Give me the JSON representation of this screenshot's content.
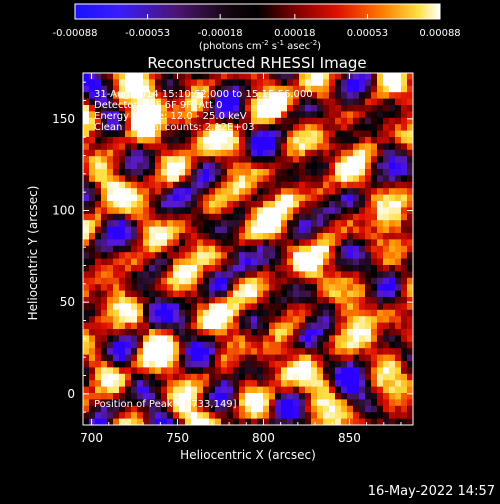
{
  "colorbar": {
    "ticks": [
      "-0.00088",
      "-0.00053",
      "-0.00018",
      "0.00018",
      "0.00053",
      "0.00088"
    ],
    "tick_values": [
      -0.00088,
      -0.00053,
      -0.00018,
      0.00018,
      0.00053,
      0.00088
    ],
    "unit_main": "(photons cm",
    "unit_exp1": "-2",
    "unit_s": " s",
    "unit_exp2": "-1",
    "unit_asec": " asec",
    "unit_exp3": "-2",
    "unit_close": ")"
  },
  "chart_data": {
    "type": "heatmap",
    "title": "Reconstructed RHESSI Image",
    "xlabel": "Heliocentric X (arcsec)",
    "ylabel": "Heliocentric Y (arcsec)",
    "xlim": [
      695,
      887
    ],
    "ylim": [
      -17,
      175
    ],
    "x_ticks": [
      700,
      750,
      800,
      850
    ],
    "y_ticks": [
      0,
      50,
      100,
      150
    ],
    "color_range": [
      -0.00088,
      0.00088
    ],
    "peak": [
      733,
      149
    ],
    "colorscale": [
      "#2a00ff",
      "#5a1ad2",
      "#3a1440",
      "#000000",
      "#800000",
      "#e01000",
      "#ff8a00",
      "#ffe040",
      "#ffffff"
    ],
    "annotations": [
      "31-Aug-2014 15:10:52.000 to 15:15:56.000",
      "Detectors: 3F 6F 9F, Att 0",
      "Energy Range: 12.0 - 25.0 keV",
      "Clean     Total counts: 2.12E+03",
      "Position of Peak = [733,149]"
    ]
  },
  "footer": {
    "timestamp": "16-May-2022 14:57"
  }
}
